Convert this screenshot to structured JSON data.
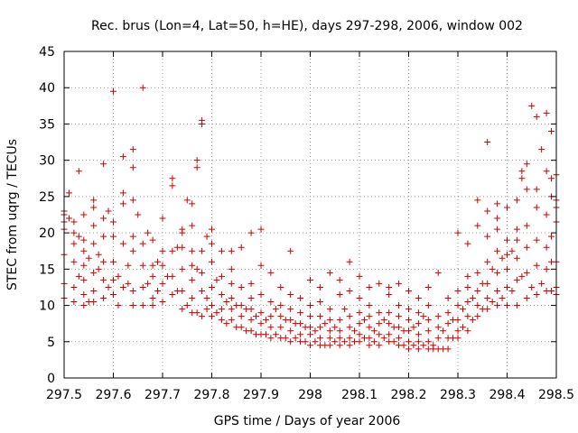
{
  "chart_data": {
    "type": "scatter",
    "title": "Rec. brus (Lon=4, Lat=50, h=HE), days 297-298, 2006, window 002",
    "xlabel": "GPS time / Days of year 2006",
    "ylabel": "STEC from uqrg / TECUs",
    "xlim": [
      297.5,
      298.5
    ],
    "ylim": [
      0,
      45
    ],
    "xticks": [
      297.5,
      297.6,
      297.7,
      297.8,
      297.9,
      298.0,
      298.1,
      298.2,
      298.3,
      298.4,
      298.5
    ],
    "xtick_labels": [
      "297.5",
      "297.6",
      "297.7",
      "297.8",
      "297.9",
      "298",
      "298.1",
      "298.2",
      "298.3",
      "298.4",
      "298.5"
    ],
    "yticks": [
      0,
      5,
      10,
      15,
      20,
      25,
      30,
      35,
      40,
      45
    ],
    "ytick_labels": [
      "0",
      "5",
      "10",
      "15",
      "20",
      "25",
      "30",
      "35",
      "40",
      "45"
    ],
    "grid": true,
    "marker": "+",
    "color": "#cc0000",
    "points": [
      [
        297.5,
        11.0
      ],
      [
        297.5,
        13.0
      ],
      [
        297.5,
        17.0
      ],
      [
        297.5,
        20.5
      ],
      [
        297.5,
        21.5
      ],
      [
        297.5,
        22.5
      ],
      [
        297.5,
        23.0
      ],
      [
        297.51,
        25.5
      ],
      [
        297.51,
        22.0
      ],
      [
        297.52,
        10.5
      ],
      [
        297.52,
        16.0
      ],
      [
        297.52,
        18.5
      ],
      [
        297.52,
        20.0
      ],
      [
        297.52,
        21.5
      ],
      [
        297.52,
        12.5
      ],
      [
        297.53,
        28.5
      ],
      [
        297.53,
        19.5
      ],
      [
        297.53,
        14.0
      ],
      [
        297.54,
        10.0
      ],
      [
        297.54,
        13.5
      ],
      [
        297.54,
        15.5
      ],
      [
        297.54,
        17.5
      ],
      [
        297.54,
        19.0
      ],
      [
        297.54,
        22.5
      ],
      [
        297.54,
        11.5
      ],
      [
        297.55,
        10.5
      ],
      [
        297.55,
        16.5
      ],
      [
        297.56,
        10.5
      ],
      [
        297.56,
        14.5
      ],
      [
        297.56,
        18.5
      ],
      [
        297.56,
        21.0
      ],
      [
        297.56,
        23.5
      ],
      [
        297.56,
        24.5
      ],
      [
        297.56,
        12.0
      ],
      [
        297.57,
        15.0
      ],
      [
        297.57,
        17.0
      ],
      [
        297.58,
        11.0
      ],
      [
        297.58,
        13.5
      ],
      [
        297.58,
        16.0
      ],
      [
        297.58,
        19.5
      ],
      [
        297.58,
        22.0
      ],
      [
        297.58,
        29.5
      ],
      [
        297.59,
        12.5
      ],
      [
        297.59,
        23.0
      ],
      [
        297.6,
        11.5
      ],
      [
        297.6,
        13.5
      ],
      [
        297.6,
        16.0
      ],
      [
        297.6,
        19.5
      ],
      [
        297.6,
        21.5
      ],
      [
        297.6,
        39.5
      ],
      [
        297.61,
        14.0
      ],
      [
        297.61,
        10.0
      ],
      [
        297.62,
        12.5
      ],
      [
        297.62,
        18.5
      ],
      [
        297.62,
        24.0
      ],
      [
        297.62,
        25.5
      ],
      [
        297.62,
        30.5
      ],
      [
        297.63,
        13.0
      ],
      [
        297.63,
        15.5
      ],
      [
        297.64,
        10.0
      ],
      [
        297.64,
        12.0
      ],
      [
        297.64,
        17.5
      ],
      [
        297.64,
        19.5
      ],
      [
        297.64,
        24.5
      ],
      [
        297.64,
        29.0
      ],
      [
        297.64,
        31.5
      ],
      [
        297.65,
        22.5
      ],
      [
        297.66,
        10.0
      ],
      [
        297.66,
        12.5
      ],
      [
        297.66,
        15.5
      ],
      [
        297.66,
        18.5
      ],
      [
        297.66,
        40.0
      ],
      [
        297.67,
        13.0
      ],
      [
        297.67,
        20.0
      ],
      [
        297.68,
        10.0
      ],
      [
        297.68,
        11.0
      ],
      [
        297.68,
        14.0
      ],
      [
        297.68,
        15.5
      ],
      [
        297.68,
        19.0
      ],
      [
        297.69,
        12.0
      ],
      [
        297.69,
        16.0
      ],
      [
        297.7,
        10.5
      ],
      [
        297.7,
        13.0
      ],
      [
        297.7,
        15.5
      ],
      [
        297.7,
        22.0
      ],
      [
        297.7,
        17.5
      ],
      [
        297.71,
        14.0
      ],
      [
        297.72,
        11.5
      ],
      [
        297.72,
        14.0
      ],
      [
        297.72,
        17.5
      ],
      [
        297.72,
        26.5
      ],
      [
        297.72,
        27.5
      ],
      [
        297.73,
        12.0
      ],
      [
        297.73,
        18.0
      ],
      [
        297.74,
        9.5
      ],
      [
        297.74,
        12.0
      ],
      [
        297.74,
        15.0
      ],
      [
        297.74,
        18.0
      ],
      [
        297.74,
        20.5
      ],
      [
        297.74,
        20.0
      ],
      [
        297.75,
        10.0
      ],
      [
        297.75,
        24.5
      ],
      [
        297.76,
        9.0
      ],
      [
        297.76,
        11.0
      ],
      [
        297.76,
        13.5
      ],
      [
        297.76,
        15.5
      ],
      [
        297.76,
        17.5
      ],
      [
        297.76,
        21.0
      ],
      [
        297.76,
        24.0
      ],
      [
        297.77,
        9.0
      ],
      [
        297.77,
        15.0
      ],
      [
        297.77,
        29.0
      ],
      [
        297.77,
        30.0
      ],
      [
        297.78,
        8.5
      ],
      [
        297.78,
        12.0
      ],
      [
        297.78,
        14.5
      ],
      [
        297.78,
        17.5
      ],
      [
        297.78,
        35.5
      ],
      [
        297.78,
        35.0
      ],
      [
        297.79,
        9.5
      ],
      [
        297.79,
        11.0
      ],
      [
        297.79,
        19.5
      ],
      [
        297.8,
        8.5
      ],
      [
        297.8,
        10.0
      ],
      [
        297.8,
        12.5
      ],
      [
        297.8,
        16.0
      ],
      [
        297.8,
        18.5
      ],
      [
        297.8,
        20.5
      ],
      [
        297.81,
        9.0
      ],
      [
        297.81,
        13.5
      ],
      [
        297.82,
        8.0
      ],
      [
        297.82,
        9.5
      ],
      [
        297.82,
        11.5
      ],
      [
        297.82,
        14.0
      ],
      [
        297.82,
        17.5
      ],
      [
        297.83,
        7.5
      ],
      [
        297.83,
        10.5
      ],
      [
        297.84,
        8.0
      ],
      [
        297.84,
        9.5
      ],
      [
        297.84,
        11.0
      ],
      [
        297.84,
        13.0
      ],
      [
        297.84,
        15.0
      ],
      [
        297.84,
        17.5
      ],
      [
        297.85,
        7.0
      ],
      [
        297.85,
        10.0
      ],
      [
        297.86,
        7.0
      ],
      [
        297.86,
        8.5
      ],
      [
        297.86,
        10.0
      ],
      [
        297.86,
        12.5
      ],
      [
        297.86,
        18.0
      ],
      [
        297.87,
        6.5
      ],
      [
        297.87,
        9.5
      ],
      [
        297.88,
        6.5
      ],
      [
        297.88,
        8.0
      ],
      [
        297.88,
        9.5
      ],
      [
        297.88,
        11.0
      ],
      [
        297.88,
        13.0
      ],
      [
        297.88,
        20.0
      ],
      [
        297.89,
        6.0
      ],
      [
        297.89,
        8.5
      ],
      [
        297.9,
        6.0
      ],
      [
        297.9,
        7.5
      ],
      [
        297.9,
        9.0
      ],
      [
        297.9,
        11.5
      ],
      [
        297.9,
        15.5
      ],
      [
        297.9,
        20.5
      ],
      [
        297.91,
        6.0
      ],
      [
        297.91,
        8.0
      ],
      [
        297.92,
        5.5
      ],
      [
        297.92,
        7.0
      ],
      [
        297.92,
        8.5
      ],
      [
        297.92,
        10.5
      ],
      [
        297.92,
        14.5
      ],
      [
        297.93,
        6.0
      ],
      [
        297.93,
        9.5
      ],
      [
        297.94,
        5.5
      ],
      [
        297.94,
        7.0
      ],
      [
        297.94,
        8.5
      ],
      [
        297.94,
        10.0
      ],
      [
        297.94,
        12.5
      ],
      [
        297.95,
        5.5
      ],
      [
        297.95,
        8.0
      ],
      [
        297.96,
        5.0
      ],
      [
        297.96,
        6.5
      ],
      [
        297.96,
        8.0
      ],
      [
        297.96,
        9.5
      ],
      [
        297.96,
        11.5
      ],
      [
        297.96,
        17.5
      ],
      [
        297.97,
        5.5
      ],
      [
        297.97,
        7.5
      ],
      [
        297.98,
        5.0
      ],
      [
        297.98,
        6.0
      ],
      [
        297.98,
        7.5
      ],
      [
        297.98,
        9.0
      ],
      [
        297.98,
        11.0
      ],
      [
        297.99,
        5.0
      ],
      [
        297.99,
        7.0
      ],
      [
        298.0,
        4.5
      ],
      [
        298.0,
        6.0
      ],
      [
        298.0,
        7.0
      ],
      [
        298.0,
        8.5
      ],
      [
        298.0,
        10.0
      ],
      [
        298.0,
        13.5
      ],
      [
        298.01,
        5.0
      ],
      [
        298.01,
        6.5
      ],
      [
        298.02,
        4.5
      ],
      [
        298.02,
        5.5
      ],
      [
        298.02,
        7.0
      ],
      [
        298.02,
        8.5
      ],
      [
        298.02,
        10.5
      ],
      [
        298.02,
        12.5
      ],
      [
        298.03,
        4.5
      ],
      [
        298.03,
        7.5
      ],
      [
        298.04,
        4.5
      ],
      [
        298.04,
        5.5
      ],
      [
        298.04,
        6.5
      ],
      [
        298.04,
        8.0
      ],
      [
        298.04,
        9.5
      ],
      [
        298.04,
        14.5
      ],
      [
        298.05,
        5.0
      ],
      [
        298.05,
        7.0
      ],
      [
        298.06,
        4.5
      ],
      [
        298.06,
        5.5
      ],
      [
        298.06,
        6.5
      ],
      [
        298.06,
        8.0
      ],
      [
        298.06,
        11.5
      ],
      [
        298.06,
        13.5
      ],
      [
        298.07,
        5.0
      ],
      [
        298.07,
        9.5
      ],
      [
        298.08,
        4.5
      ],
      [
        298.08,
        5.5
      ],
      [
        298.08,
        7.0
      ],
      [
        298.08,
        8.5
      ],
      [
        298.08,
        12.0
      ],
      [
        298.08,
        16.0
      ],
      [
        298.09,
        5.0
      ],
      [
        298.09,
        6.5
      ],
      [
        298.1,
        5.0
      ],
      [
        298.1,
        6.0
      ],
      [
        298.1,
        7.5
      ],
      [
        298.1,
        9.0
      ],
      [
        298.1,
        11.0
      ],
      [
        298.1,
        14.0
      ],
      [
        298.11,
        5.5
      ],
      [
        298.11,
        8.0
      ],
      [
        298.12,
        4.5
      ],
      [
        298.12,
        5.5
      ],
      [
        298.12,
        7.0
      ],
      [
        298.12,
        8.5
      ],
      [
        298.12,
        10.0
      ],
      [
        298.12,
        12.5
      ],
      [
        298.13,
        5.0
      ],
      [
        298.13,
        6.5
      ],
      [
        298.14,
        4.5
      ],
      [
        298.14,
        6.0
      ],
      [
        298.14,
        7.5
      ],
      [
        298.14,
        9.0
      ],
      [
        298.14,
        13.0
      ],
      [
        298.15,
        5.5
      ],
      [
        298.15,
        8.0
      ],
      [
        298.16,
        5.0
      ],
      [
        298.16,
        6.0
      ],
      [
        298.16,
        7.5
      ],
      [
        298.16,
        9.0
      ],
      [
        298.16,
        11.5
      ],
      [
        298.16,
        12.5
      ],
      [
        298.17,
        5.0
      ],
      [
        298.17,
        7.0
      ],
      [
        298.18,
        4.5
      ],
      [
        298.18,
        5.5
      ],
      [
        298.18,
        7.0
      ],
      [
        298.18,
        8.5
      ],
      [
        298.18,
        10.0
      ],
      [
        298.18,
        13.0
      ],
      [
        298.19,
        4.5
      ],
      [
        298.19,
        6.5
      ],
      [
        298.2,
        4.0
      ],
      [
        298.2,
        5.0
      ],
      [
        298.2,
        6.5
      ],
      [
        298.2,
        8.0
      ],
      [
        298.2,
        9.5
      ],
      [
        298.2,
        12.0
      ],
      [
        298.21,
        4.5
      ],
      [
        298.21,
        7.0
      ],
      [
        298.22,
        4.0
      ],
      [
        298.22,
        5.0
      ],
      [
        298.22,
        6.0
      ],
      [
        298.22,
        7.5
      ],
      [
        298.22,
        9.0
      ],
      [
        298.22,
        11.0
      ],
      [
        298.23,
        4.5
      ],
      [
        298.23,
        8.5
      ],
      [
        298.24,
        4.0
      ],
      [
        298.24,
        5.0
      ],
      [
        298.24,
        6.5
      ],
      [
        298.24,
        8.0
      ],
      [
        298.24,
        10.0
      ],
      [
        298.24,
        12.5
      ],
      [
        298.25,
        4.0
      ],
      [
        298.25,
        4.5
      ],
      [
        298.26,
        4.0
      ],
      [
        298.26,
        5.5
      ],
      [
        298.26,
        7.0
      ],
      [
        298.26,
        8.5
      ],
      [
        298.26,
        14.5
      ],
      [
        298.27,
        4.0
      ],
      [
        298.27,
        6.5
      ],
      [
        298.28,
        4.0
      ],
      [
        298.28,
        5.5
      ],
      [
        298.28,
        7.5
      ],
      [
        298.28,
        9.0
      ],
      [
        298.28,
        11.0
      ],
      [
        298.29,
        5.5
      ],
      [
        298.29,
        8.0
      ],
      [
        298.3,
        5.5
      ],
      [
        298.3,
        6.5
      ],
      [
        298.3,
        8.0
      ],
      [
        298.3,
        10.0
      ],
      [
        298.3,
        12.0
      ],
      [
        298.3,
        20.0
      ],
      [
        298.31,
        7.0
      ],
      [
        298.31,
        9.5
      ],
      [
        298.32,
        6.5
      ],
      [
        298.32,
        8.5
      ],
      [
        298.32,
        10.5
      ],
      [
        298.32,
        12.5
      ],
      [
        298.32,
        14.0
      ],
      [
        298.32,
        18.5
      ],
      [
        298.33,
        8.0
      ],
      [
        298.33,
        11.0
      ],
      [
        298.34,
        8.5
      ],
      [
        298.34,
        10.0
      ],
      [
        298.34,
        12.0
      ],
      [
        298.34,
        14.5
      ],
      [
        298.34,
        21.0
      ],
      [
        298.34,
        24.5
      ],
      [
        298.35,
        9.5
      ],
      [
        298.35,
        13.0
      ],
      [
        298.36,
        9.5
      ],
      [
        298.36,
        11.0
      ],
      [
        298.36,
        13.0
      ],
      [
        298.36,
        16.0
      ],
      [
        298.36,
        19.5
      ],
      [
        298.36,
        23.0
      ],
      [
        298.36,
        32.5
      ],
      [
        298.37,
        10.5
      ],
      [
        298.37,
        15.0
      ],
      [
        298.38,
        10.0
      ],
      [
        298.38,
        12.0
      ],
      [
        298.38,
        14.5
      ],
      [
        298.38,
        17.5
      ],
      [
        298.38,
        20.5
      ],
      [
        298.38,
        24.0
      ],
      [
        298.38,
        22.0
      ],
      [
        298.39,
        11.0
      ],
      [
        298.39,
        16.5
      ],
      [
        298.4,
        10.0
      ],
      [
        298.4,
        12.5
      ],
      [
        298.4,
        15.0
      ],
      [
        298.4,
        17.0
      ],
      [
        298.4,
        19.0
      ],
      [
        298.4,
        23.5
      ],
      [
        298.41,
        12.0
      ],
      [
        298.41,
        17.5
      ],
      [
        298.42,
        10.0
      ],
      [
        298.42,
        13.5
      ],
      [
        298.42,
        16.5
      ],
      [
        298.42,
        19.0
      ],
      [
        298.42,
        20.5
      ],
      [
        298.42,
        24.5
      ],
      [
        298.43,
        14.0
      ],
      [
        298.43,
        27.5
      ],
      [
        298.43,
        28.5
      ],
      [
        298.44,
        11.0
      ],
      [
        298.44,
        14.5
      ],
      [
        298.44,
        18.0
      ],
      [
        298.44,
        21.0
      ],
      [
        298.44,
        26.0
      ],
      [
        298.44,
        29.5
      ],
      [
        298.45,
        12.5
      ],
      [
        298.45,
        37.5
      ],
      [
        298.46,
        11.5
      ],
      [
        298.46,
        15.5
      ],
      [
        298.46,
        19.0
      ],
      [
        298.46,
        23.5
      ],
      [
        298.46,
        26.0
      ],
      [
        298.46,
        36.0
      ],
      [
        298.47,
        13.0
      ],
      [
        298.47,
        31.5
      ],
      [
        298.48,
        12.0
      ],
      [
        298.48,
        15.0
      ],
      [
        298.48,
        18.0
      ],
      [
        298.48,
        22.5
      ],
      [
        298.48,
        28.5
      ],
      [
        298.48,
        36.5
      ],
      [
        298.49,
        12.0
      ],
      [
        298.49,
        16.0
      ],
      [
        298.49,
        19.5
      ],
      [
        298.49,
        25.0
      ],
      [
        298.49,
        27.5
      ],
      [
        298.49,
        34.0
      ],
      [
        298.5,
        11.5
      ],
      [
        298.5,
        12.5
      ],
      [
        298.5,
        16.0
      ],
      [
        298.5,
        21.5
      ],
      [
        298.5,
        23.5
      ],
      [
        298.5,
        24.5
      ],
      [
        298.5,
        28.0
      ]
    ]
  }
}
